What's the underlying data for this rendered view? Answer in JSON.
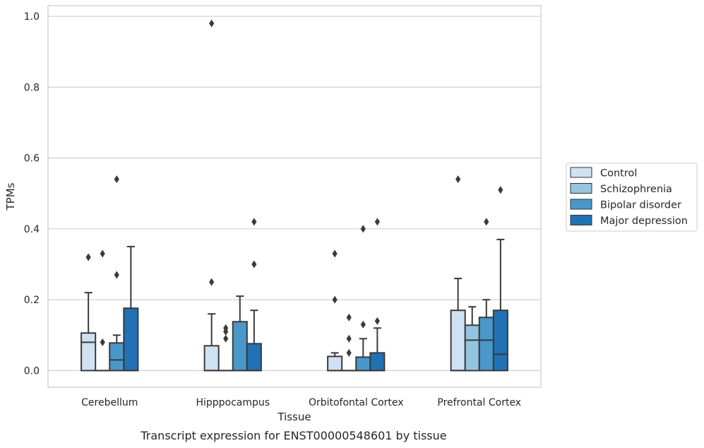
{
  "chart_data": {
    "type": "box",
    "caption": "Transcript expression for ENST00000548601 by tissue",
    "xlabel": "Tissue",
    "ylabel": "TPMs",
    "ylim": [
      -0.047,
      1.03
    ],
    "yticks": [
      0.0,
      0.2,
      0.4,
      0.6,
      0.8,
      1.0
    ],
    "ytick_labels": [
      "0.0",
      "0.2",
      "0.4",
      "0.6",
      "0.8",
      "1.0"
    ],
    "grid": true,
    "legend_position": "right",
    "categories": [
      "Cerebellum",
      "Hipppocampus",
      "Orbitofontal Cortex",
      "Prefrontal Cortex"
    ],
    "series": [
      {
        "name": "Control",
        "color": "#d0e1f2",
        "boxes": [
          {
            "q1": 0.0,
            "median": 0.08,
            "q3": 0.106,
            "whisker_low": 0.0,
            "whisker_high": 0.22,
            "outliers": [
              0.32
            ]
          },
          {
            "q1": 0.0,
            "median": 0.0,
            "q3": 0.07,
            "whisker_low": 0.0,
            "whisker_high": 0.16,
            "outliers": [
              0.25,
              0.98
            ]
          },
          {
            "q1": 0.0,
            "median": 0.0,
            "q3": 0.04,
            "whisker_low": 0.0,
            "whisker_high": 0.05,
            "outliers": [
              0.2,
              0.33
            ]
          },
          {
            "q1": 0.0,
            "median": 0.0,
            "q3": 0.17,
            "whisker_low": 0.0,
            "whisker_high": 0.26,
            "outliers": [
              0.54
            ]
          }
        ]
      },
      {
        "name": "Schizophrenia",
        "color": "#94c4df",
        "boxes": [
          {
            "q1": 0.0,
            "median": 0.0,
            "q3": 0.0,
            "whisker_low": 0.0,
            "whisker_high": 0.0,
            "outliers": [
              0.08,
              0.33
            ]
          },
          {
            "q1": 0.0,
            "median": 0.0,
            "q3": 0.0,
            "whisker_low": 0.0,
            "whisker_high": 0.0,
            "outliers": [
              0.09,
              0.11,
              0.12
            ]
          },
          {
            "q1": 0.0,
            "median": 0.0,
            "q3": 0.0,
            "whisker_low": 0.0,
            "whisker_high": 0.0,
            "outliers": [
              0.05,
              0.09,
              0.15
            ]
          },
          {
            "q1": 0.0,
            "median": 0.086,
            "q3": 0.128,
            "whisker_low": 0.0,
            "whisker_high": 0.18,
            "outliers": []
          }
        ]
      },
      {
        "name": "Bipolar disorder",
        "color": "#4a98c9",
        "boxes": [
          {
            "q1": 0.0,
            "median": 0.03,
            "q3": 0.078,
            "whisker_low": 0.0,
            "whisker_high": 0.1,
            "outliers": [
              0.27,
              0.54
            ]
          },
          {
            "q1": 0.0,
            "median": 0.0,
            "q3": 0.138,
            "whisker_low": 0.0,
            "whisker_high": 0.21,
            "outliers": []
          },
          {
            "q1": 0.0,
            "median": 0.0,
            "q3": 0.038,
            "whisker_low": 0.0,
            "whisker_high": 0.09,
            "outliers": [
              0.13,
              0.4
            ]
          },
          {
            "q1": 0.0,
            "median": 0.086,
            "q3": 0.15,
            "whisker_low": 0.0,
            "whisker_high": 0.2,
            "outliers": [
              0.42
            ]
          }
        ]
      },
      {
        "name": "Major depression",
        "color": "#2171b5",
        "boxes": [
          {
            "q1": 0.0,
            "median": 0.0,
            "q3": 0.176,
            "whisker_low": 0.0,
            "whisker_high": 0.35,
            "outliers": []
          },
          {
            "q1": 0.0,
            "median": 0.0,
            "q3": 0.076,
            "whisker_low": 0.0,
            "whisker_high": 0.17,
            "outliers": [
              0.3,
              0.42
            ]
          },
          {
            "q1": 0.0,
            "median": 0.0,
            "q3": 0.05,
            "whisker_low": 0.0,
            "whisker_high": 0.12,
            "outliers": [
              0.14,
              0.42
            ]
          },
          {
            "q1": 0.0,
            "median": 0.046,
            "q3": 0.17,
            "whisker_low": 0.0,
            "whisker_high": 0.37,
            "outliers": [
              0.51
            ]
          }
        ]
      }
    ]
  }
}
